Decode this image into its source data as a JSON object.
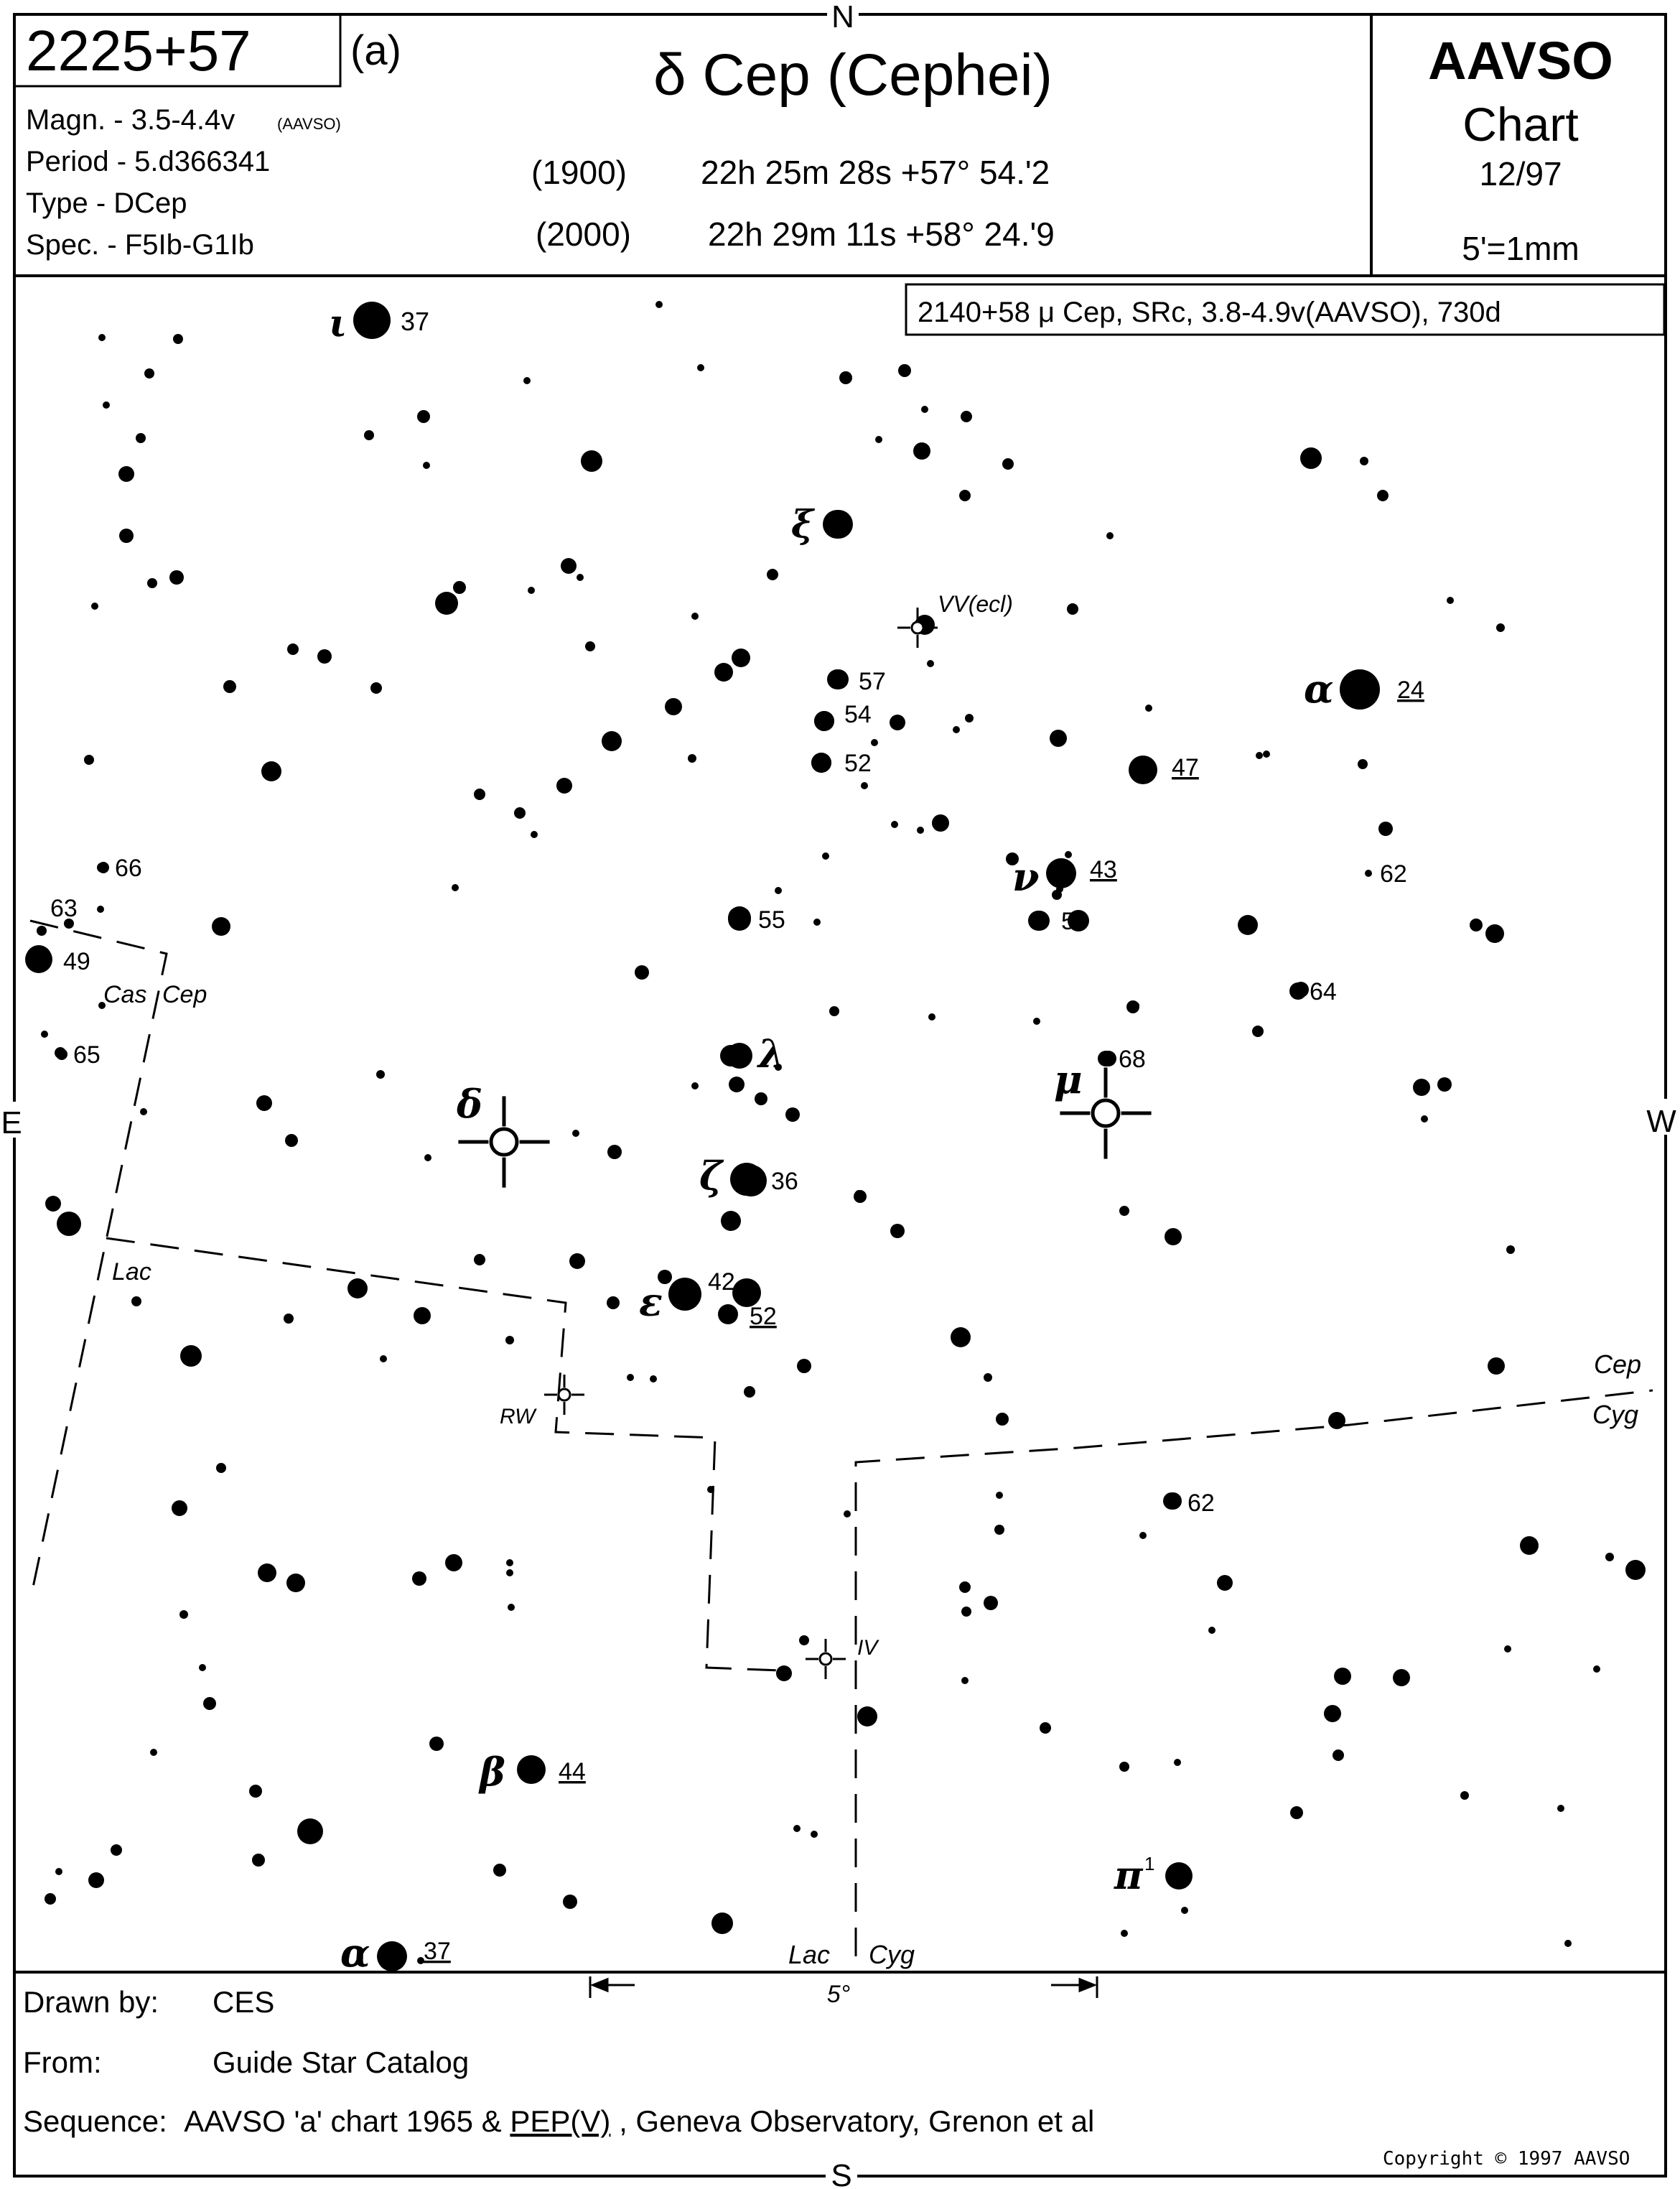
{
  "header": {
    "chart_id": "2225+57",
    "chart_letter": "(a)",
    "star_title": "δ Cep (Cephei)",
    "magnitude": "Magn. - 3.5-4.4v",
    "magnitude_source": "(AAVSO)",
    "period": "Period - 5.d366341",
    "type": "Type - DCep",
    "spectrum": "Spec. - F5Ib-G1Ib",
    "coords_1900_epoch": "(1900)",
    "coords_1900": "22h 25m 28s +57° 54.'2",
    "coords_2000_epoch": "(2000)",
    "coords_2000": "22h 29m 11s +58° 24.'9",
    "org": "AAVSO",
    "chart_word": "Chart",
    "date": "12/97",
    "scale": "5'=1mm"
  },
  "compass": {
    "north": "N",
    "south": "S",
    "east": "E",
    "west": "W"
  },
  "inset_label": "2140+58 μ Cep, SRc, 3.8-4.9v(AAVSO), 730d",
  "star_labels": [
    {
      "text": "ι",
      "kind": "greek"
    },
    {
      "text": "37",
      "kind": "mag"
    },
    {
      "text": "ξ",
      "kind": "greek"
    },
    {
      "text": "VV(ecl)",
      "kind": "var"
    },
    {
      "text": "57",
      "kind": "mag"
    },
    {
      "text": "54",
      "kind": "mag"
    },
    {
      "text": "52",
      "kind": "mag"
    },
    {
      "text": "α",
      "kind": "greek"
    },
    {
      "text": "24",
      "kind": "mag_ul"
    },
    {
      "text": "47",
      "kind": "mag_ul"
    },
    {
      "text": "ν",
      "kind": "greek"
    },
    {
      "text": "43",
      "kind": "mag_ul"
    },
    {
      "text": "56",
      "kind": "mag"
    },
    {
      "text": "62",
      "kind": "mag"
    },
    {
      "text": "66",
      "kind": "mag"
    },
    {
      "text": "63",
      "kind": "mag"
    },
    {
      "text": "49",
      "kind": "mag"
    },
    {
      "text": "65",
      "kind": "mag"
    },
    {
      "text": "55",
      "kind": "mag"
    },
    {
      "text": "λ",
      "kind": "greek"
    },
    {
      "text": "64",
      "kind": "mag"
    },
    {
      "text": "68",
      "kind": "mag"
    },
    {
      "text": "μ",
      "kind": "greek"
    },
    {
      "text": "δ",
      "kind": "greek"
    },
    {
      "text": "ζ",
      "kind": "greek"
    },
    {
      "text": "36",
      "kind": "mag"
    },
    {
      "text": "ε",
      "kind": "greek"
    },
    {
      "text": "42",
      "kind": "mag"
    },
    {
      "text": "52",
      "kind": "mag_ul"
    },
    {
      "text": "RW",
      "kind": "var"
    },
    {
      "text": "62",
      "kind": "mag"
    },
    {
      "text": "IV",
      "kind": "var"
    },
    {
      "text": "β",
      "kind": "greek"
    },
    {
      "text": "44",
      "kind": "mag_ul"
    },
    {
      "text": "π",
      "kind": "greek"
    },
    {
      "text": "1",
      "kind": "sup"
    },
    {
      "text": "α",
      "kind": "greek"
    },
    {
      "text": "37",
      "kind": "mag_ul"
    }
  ],
  "boundary_labels": [
    "Cas",
    "Cep",
    "Lac",
    "Cep",
    "Cyg",
    "Lac",
    "Cyg"
  ],
  "scale_bar_label": "5°",
  "footer": {
    "drawn_by_label": "Drawn by:",
    "drawn_by": "CES",
    "from_label": "From:",
    "from": "Guide Star Catalog",
    "sequence_label": "Sequence:",
    "sequence_pre": "AAVSO 'a' chart 1965 & ",
    "sequence_link": "PEP(V)",
    "sequence_post": ", Geneva Observatory, Grenon et al",
    "copyright": "Copyright © 1997 AAVSO"
  }
}
